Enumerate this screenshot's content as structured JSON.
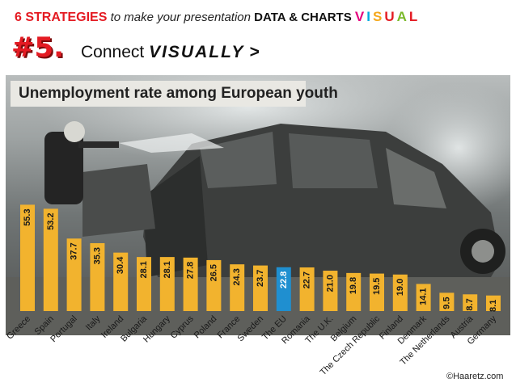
{
  "header": {
    "strategies": "6 STRATEGIES",
    "middle": "to make your presentation",
    "data_charts": "DATA & CHARTS",
    "visual_letters": [
      "V",
      "I",
      "S",
      "U",
      "A",
      "L"
    ],
    "visual_colors": [
      "#e5007e",
      "#00a9e0",
      "#f5a81c",
      "#e41b23",
      "#7ab929",
      "#e41b23"
    ]
  },
  "subheading": {
    "number": "#5.",
    "prefix": "Connect",
    "emphasis": "VISUALLY",
    "suffix": ">"
  },
  "credit": "©Haaretz.com",
  "colors": {
    "bar": "#f2b32e",
    "highlight_bar": "#1f8fd0",
    "accent_red": "#e41b23"
  },
  "chart_data": {
    "type": "bar",
    "title": "Unemployment rate among European youth",
    "categories": [
      "Greece",
      "Spain",
      "Portugal",
      "Italy",
      "Ireland",
      "Bulgaria",
      "Hungary",
      "Cyprus",
      "Poland",
      "France",
      "Sweden",
      "The EU",
      "Romania",
      "The U.K.",
      "Belgium",
      "The Czech Republic",
      "Finland",
      "Denmark",
      "The Netherlands",
      "Austria",
      "Germany"
    ],
    "values": [
      55.3,
      53.2,
      37.7,
      35.3,
      30.4,
      28.1,
      28.1,
      27.8,
      26.5,
      24.3,
      23.7,
      22.8,
      22.7,
      21.0,
      19.8,
      19.5,
      19.0,
      14.1,
      9.5,
      8.7,
      8.1
    ],
    "labels": [
      "55.3",
      "53.2",
      "37.7",
      "35.3",
      "30.4",
      "28.1",
      "28.1",
      "27.8",
      "26.5",
      "24.3",
      "23.7",
      "22.8",
      "22.7",
      "21.0",
      "19.8",
      "19.5",
      "19.0",
      "14.1",
      "9.5",
      "8.7",
      "8.1"
    ],
    "highlight": "The EU",
    "ylim": [
      0,
      60
    ],
    "xlabel": "",
    "ylabel": "",
    "grid": false,
    "legend": "none"
  }
}
